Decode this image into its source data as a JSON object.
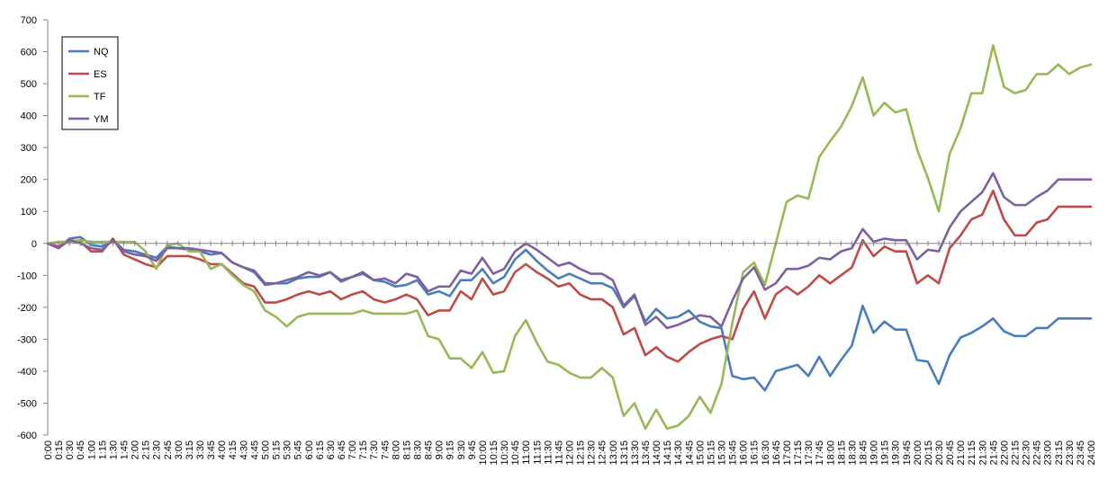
{
  "chart_data": {
    "type": "line",
    "title": "",
    "xlabel": "",
    "ylabel": "",
    "ylim": [
      -600,
      700
    ],
    "yticks": [
      -600,
      -500,
      -400,
      -300,
      -200,
      -100,
      0,
      100,
      200,
      300,
      400,
      500,
      600,
      700
    ],
    "grid": false,
    "legend_placement": "top-left",
    "x": [
      "0:00",
      "0:15",
      "0:30",
      "0:45",
      "1:00",
      "1:15",
      "1:30",
      "1:45",
      "2:00",
      "2:15",
      "2:30",
      "2:45",
      "3:00",
      "3:15",
      "3:30",
      "3:45",
      "4:00",
      "4:15",
      "4:30",
      "4:45",
      "5:00",
      "5:15",
      "5:30",
      "5:45",
      "6:00",
      "6:15",
      "6:30",
      "6:45",
      "7:00",
      "7:15",
      "7:30",
      "7:45",
      "8:00",
      "8:15",
      "8:30",
      "8:45",
      "9:00",
      "9:15",
      "9:30",
      "9:45",
      "10:00",
      "10:15",
      "10:30",
      "10:45",
      "11:00",
      "11:15",
      "11:30",
      "11:45",
      "12:00",
      "12:15",
      "12:30",
      "12:45",
      "13:00",
      "13:15",
      "13:30",
      "13:45",
      "14:00",
      "14:15",
      "14:30",
      "14:45",
      "15:00",
      "15:15",
      "15:30",
      "15:45",
      "16:00",
      "16:15",
      "16:30",
      "16:45",
      "17:00",
      "17:15",
      "17:30",
      "17:45",
      "18:00",
      "18:15",
      "18:30",
      "18:45",
      "19:00",
      "19:15",
      "19:30",
      "19:45",
      "20:00",
      "20:15",
      "20:30",
      "20:45",
      "21:00",
      "21:15",
      "21:30",
      "21:45",
      "22:00",
      "22:15",
      "22:30",
      "22:45",
      "23:00",
      "23:15",
      "23:30",
      "23:45",
      "24:00"
    ],
    "series": [
      {
        "name": "NQ",
        "color": "#4a7ebb",
        "values": [
          0,
          -15,
          15,
          20,
          -5,
          -10,
          10,
          -20,
          -25,
          -35,
          -45,
          -10,
          -15,
          -20,
          -25,
          -35,
          -30,
          -60,
          -75,
          -90,
          -130,
          -125,
          -125,
          -110,
          -105,
          -105,
          -90,
          -120,
          -105,
          -95,
          -115,
          -120,
          -135,
          -130,
          -115,
          -160,
          -150,
          -165,
          -115,
          -115,
          -80,
          -125,
          -105,
          -50,
          -20,
          -55,
          -85,
          -110,
          -95,
          -110,
          -125,
          -125,
          -140,
          -200,
          -165,
          -245,
          -205,
          -235,
          -230,
          -210,
          -245,
          -260,
          -265,
          -415,
          -425,
          -420,
          -460,
          -400,
          -390,
          -380,
          -415,
          -355,
          -415,
          -365,
          -320,
          -195,
          -280,
          -245,
          -270,
          -270,
          -365,
          -370,
          -440,
          -350,
          -295,
          -280,
          -260,
          -235,
          -275,
          -290,
          -290,
          -265,
          -265,
          -235,
          -235,
          -235,
          -235
        ]
      },
      {
        "name": "ES",
        "color": "#be4b48",
        "values": [
          0,
          -10,
          10,
          5,
          -25,
          -25,
          15,
          -35,
          -50,
          -65,
          -75,
          -40,
          -40,
          -40,
          -50,
          -65,
          -65,
          -95,
          -125,
          -135,
          -185,
          -185,
          -175,
          -160,
          -150,
          -160,
          -150,
          -175,
          -160,
          -150,
          -175,
          -185,
          -175,
          -160,
          -175,
          -225,
          -210,
          -210,
          -150,
          -175,
          -110,
          -160,
          -150,
          -90,
          -65,
          -90,
          -110,
          -135,
          -125,
          -160,
          -175,
          -175,
          -200,
          -285,
          -265,
          -350,
          -325,
          -355,
          -370,
          -340,
          -315,
          -300,
          -290,
          -300,
          -205,
          -150,
          -235,
          -160,
          -135,
          -160,
          -135,
          -100,
          -125,
          -100,
          -75,
          10,
          -40,
          -10,
          -25,
          -25,
          -125,
          -100,
          -125,
          -15,
          25,
          75,
          90,
          165,
          75,
          25,
          25,
          65,
          75,
          115,
          115,
          115,
          115
        ]
      },
      {
        "name": "TF",
        "color": "#98b954",
        "values": [
          0,
          5,
          5,
          10,
          5,
          5,
          5,
          5,
          5,
          -25,
          -80,
          -5,
          0,
          -25,
          -25,
          -80,
          -65,
          -100,
          -130,
          -150,
          -210,
          -230,
          -260,
          -230,
          -220,
          -220,
          -220,
          -220,
          -220,
          -210,
          -220,
          -220,
          -220,
          -220,
          -210,
          -290,
          -300,
          -360,
          -360,
          -390,
          -340,
          -405,
          -400,
          -290,
          -240,
          -310,
          -370,
          -380,
          -405,
          -420,
          -420,
          -390,
          -420,
          -540,
          -500,
          -580,
          -520,
          -580,
          -570,
          -540,
          -480,
          -530,
          -440,
          -250,
          -90,
          -60,
          -130,
          0,
          130,
          150,
          140,
          270,
          320,
          365,
          430,
          520,
          400,
          440,
          410,
          420,
          295,
          205,
          100,
          280,
          360,
          470,
          470,
          620,
          490,
          470,
          480,
          530,
          530,
          560,
          530,
          550,
          560
        ]
      },
      {
        "name": "YM",
        "color": "#7d60a0",
        "values": [
          0,
          -15,
          10,
          0,
          -15,
          -20,
          10,
          -25,
          -35,
          -40,
          -55,
          -15,
          -15,
          -15,
          -20,
          -25,
          -30,
          -60,
          -75,
          -85,
          -125,
          -125,
          -115,
          -105,
          -90,
          -100,
          -90,
          -115,
          -105,
          -90,
          -115,
          -110,
          -125,
          -95,
          -105,
          -150,
          -135,
          -135,
          -85,
          -95,
          -45,
          -95,
          -80,
          -25,
          0,
          -20,
          -45,
          -70,
          -60,
          -80,
          -95,
          -95,
          -115,
          -195,
          -160,
          -255,
          -230,
          -265,
          -255,
          -240,
          -225,
          -230,
          -260,
          -180,
          -110,
          -75,
          -145,
          -125,
          -80,
          -80,
          -70,
          -45,
          -50,
          -25,
          -15,
          45,
          5,
          15,
          10,
          10,
          -50,
          -20,
          -25,
          50,
          100,
          130,
          160,
          220,
          145,
          120,
          120,
          145,
          165,
          200,
          200,
          200,
          200
        ]
      }
    ]
  }
}
